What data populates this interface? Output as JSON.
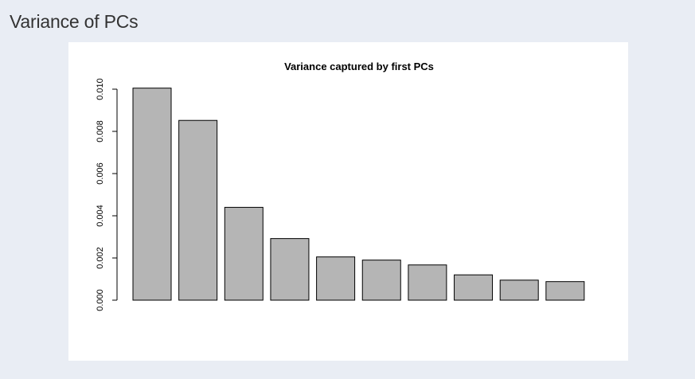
{
  "page": {
    "title": "Variance of PCs"
  },
  "chart_data": {
    "type": "bar",
    "title": "Variance captured by first PCs",
    "xlabel": "",
    "ylabel": "",
    "ylim": [
      0,
      0.01
    ],
    "yticks": [
      "0.000",
      "0.002",
      "0.004",
      "0.006",
      "0.008",
      "0.010"
    ],
    "ytick_values": [
      0,
      0.002,
      0.004,
      0.006,
      0.008,
      0.01
    ],
    "values": [
      0.01005,
      0.00852,
      0.0044,
      0.00292,
      0.00205,
      0.0019,
      0.00167,
      0.0012,
      0.00095,
      0.00088
    ],
    "bar_color": "#b5b5b5",
    "grid": false
  }
}
